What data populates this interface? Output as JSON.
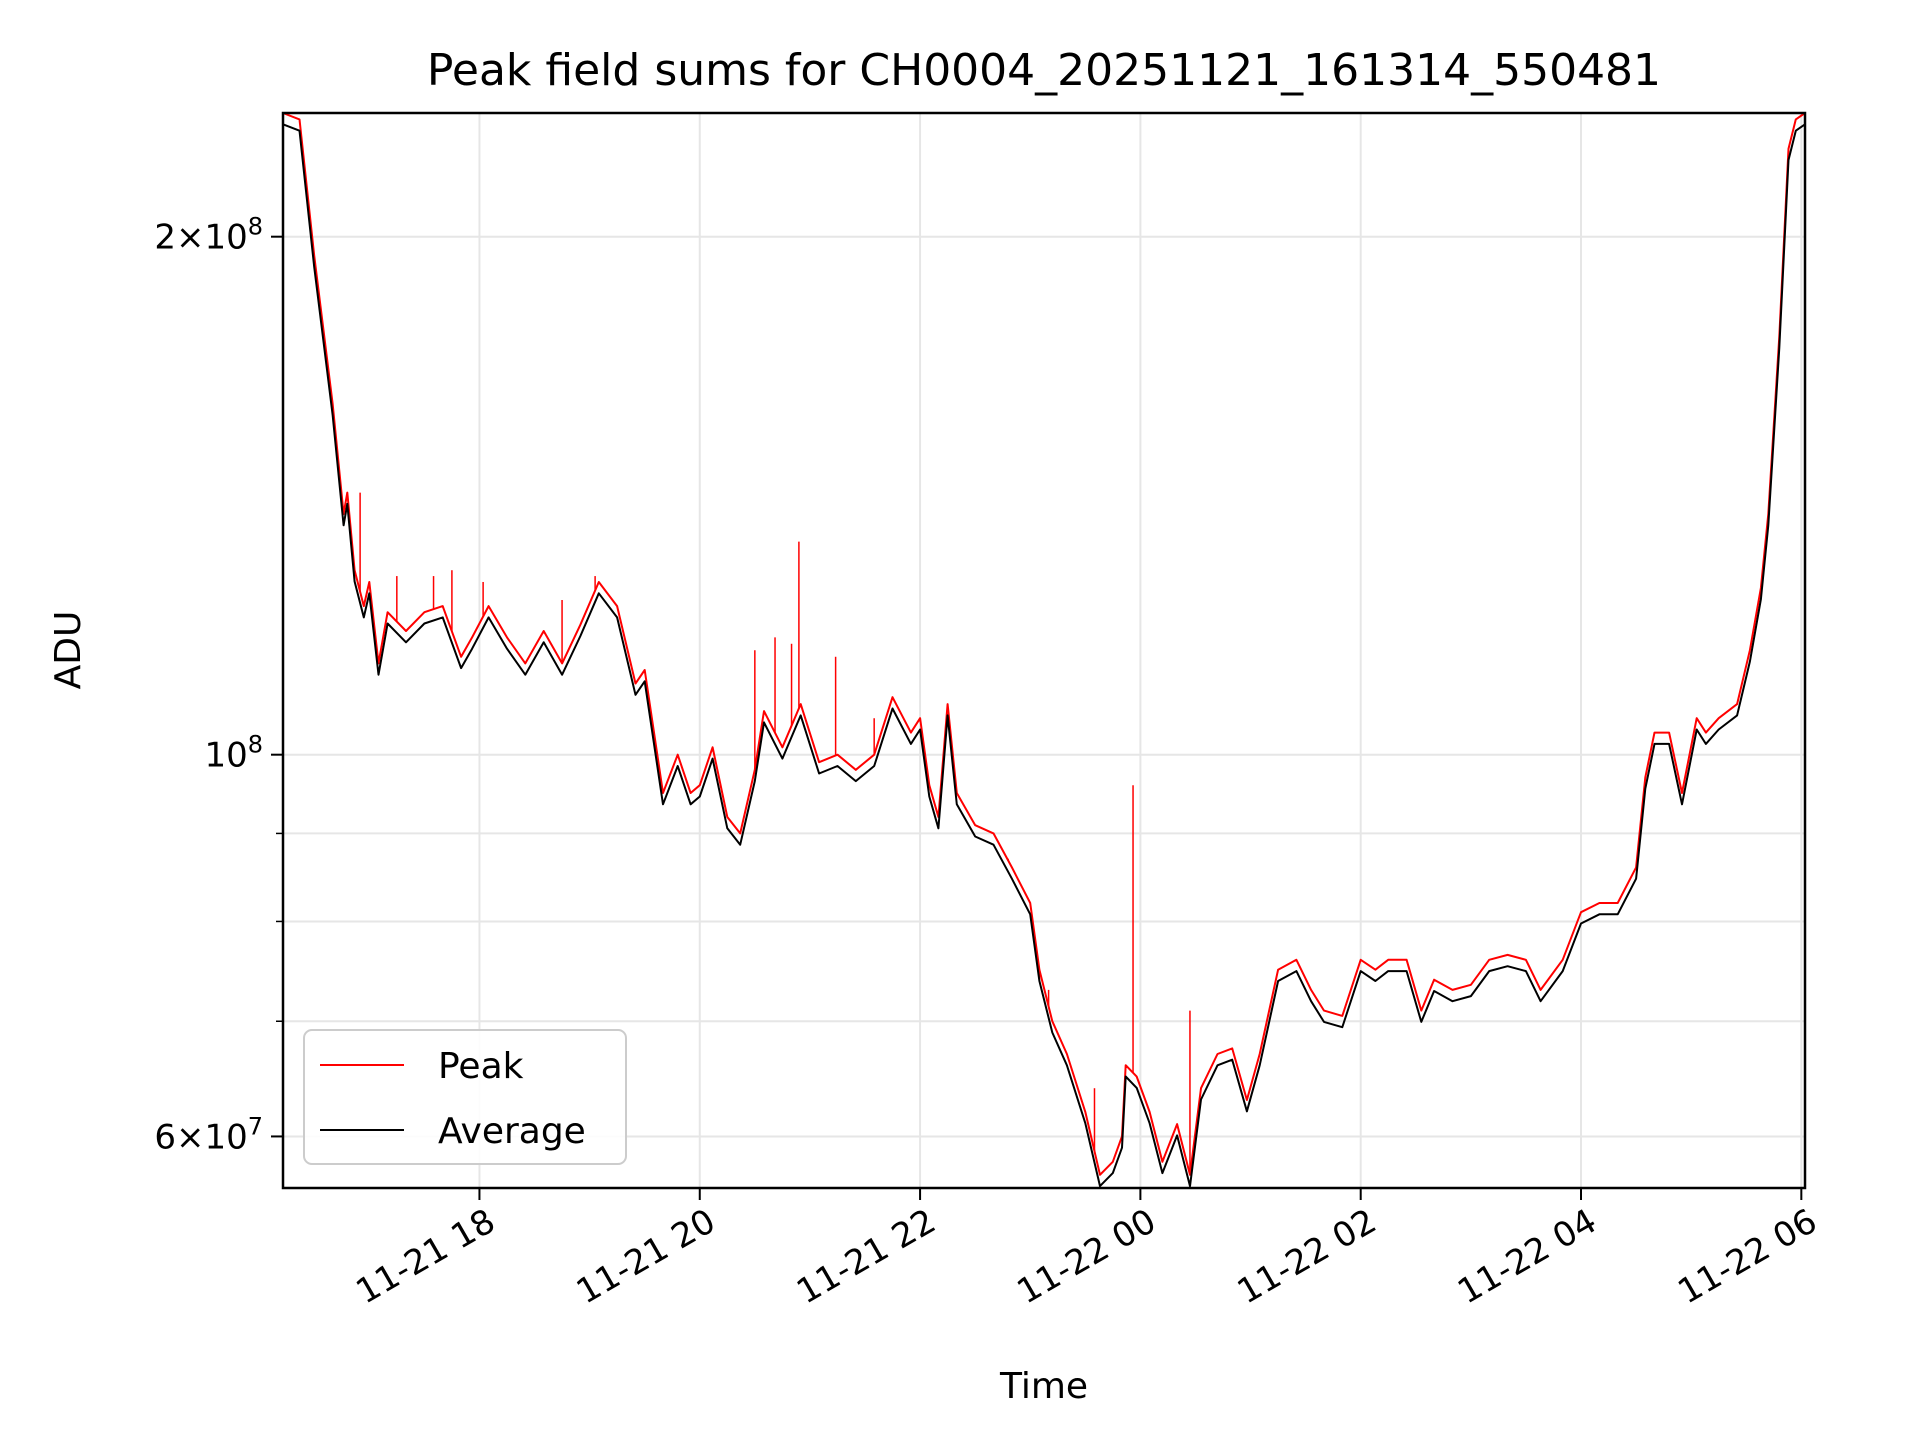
{
  "chart_data": {
    "type": "line",
    "title": "Peak field sums for CH0004_20251121_161314_550481",
    "xlabel": "Time",
    "ylabel": "ADU",
    "x_range": [
      "2025-11-21 16:13",
      "2025-11-22 06:02"
    ],
    "y_scale": "log",
    "ylim": [
      56000000,
      236000000
    ],
    "grid": true,
    "legend_position": "lower left",
    "x_ticks": [
      {
        "time": "2025-11-21 18:00",
        "label": "11-21 18"
      },
      {
        "time": "2025-11-21 20:00",
        "label": "11-21 20"
      },
      {
        "time": "2025-11-21 22:00",
        "label": "11-21 22"
      },
      {
        "time": "2025-11-22 00:00",
        "label": "11-22 00"
      },
      {
        "time": "2025-11-22 02:00",
        "label": "11-22 02"
      },
      {
        "time": "2025-11-22 04:00",
        "label": "11-22 04"
      },
      {
        "time": "2025-11-22 06:00",
        "label": "11-22 06"
      }
    ],
    "y_ticks_major": [
      {
        "value": 60000000,
        "mantissa": "6",
        "exponent": "7"
      },
      {
        "value": 100000000,
        "mantissa": "",
        "exponent": "8"
      },
      {
        "value": 200000000,
        "mantissa": "2",
        "exponent": "8"
      }
    ],
    "y_ticks_minor": [
      70000000,
      80000000,
      90000000
    ],
    "series": [
      {
        "name": "Peak",
        "color": "#ff0000",
        "points": [
          [
            "2025-11-21 16:13",
            236000000
          ],
          [
            "2025-11-21 16:22",
            234000000
          ],
          [
            "2025-11-21 16:30",
            195000000
          ],
          [
            "2025-11-21 16:40",
            160000000
          ],
          [
            "2025-11-21 16:46",
            138000000
          ],
          [
            "2025-11-21 16:48",
            142000000
          ],
          [
            "2025-11-21 16:52",
            128000000
          ],
          [
            "2025-11-21 16:57",
            122000000
          ],
          [
            "2025-11-21 17:00",
            126000000
          ],
          [
            "2025-11-21 17:05",
            113000000
          ],
          [
            "2025-11-21 17:10",
            121000000
          ],
          [
            "2025-11-21 17:20",
            118000000
          ],
          [
            "2025-11-21 17:30",
            121000000
          ],
          [
            "2025-11-21 17:40",
            122000000
          ],
          [
            "2025-11-21 17:50",
            114000000
          ],
          [
            "2025-11-21 17:56",
            117000000
          ],
          [
            "2025-11-21 18:05",
            122000000
          ],
          [
            "2025-11-21 18:15",
            117000000
          ],
          [
            "2025-11-21 18:25",
            113000000
          ],
          [
            "2025-11-21 18:35",
            118000000
          ],
          [
            "2025-11-21 18:45",
            113000000
          ],
          [
            "2025-11-21 18:55",
            119000000
          ],
          [
            "2025-11-21 19:05",
            126000000
          ],
          [
            "2025-11-21 19:15",
            122000000
          ],
          [
            "2025-11-21 19:25",
            110000000
          ],
          [
            "2025-11-21 19:30",
            112000000
          ],
          [
            "2025-11-21 19:40",
            95000000
          ],
          [
            "2025-11-21 19:48",
            100000000
          ],
          [
            "2025-11-21 19:55",
            95000000
          ],
          [
            "2025-11-21 20:00",
            96000000
          ],
          [
            "2025-11-21 20:07",
            101000000
          ],
          [
            "2025-11-21 20:15",
            92000000
          ],
          [
            "2025-11-21 20:22",
            90000000
          ],
          [
            "2025-11-21 20:30",
            98000000
          ],
          [
            "2025-11-21 20:35",
            106000000
          ],
          [
            "2025-11-21 20:45",
            101000000
          ],
          [
            "2025-11-21 20:55",
            107000000
          ],
          [
            "2025-11-21 21:05",
            99000000
          ],
          [
            "2025-11-21 21:15",
            100000000
          ],
          [
            "2025-11-21 21:25",
            98000000
          ],
          [
            "2025-11-21 21:35",
            100000000
          ],
          [
            "2025-11-21 21:45",
            108000000
          ],
          [
            "2025-11-21 21:55",
            103000000
          ],
          [
            "2025-11-21 22:00",
            105000000
          ],
          [
            "2025-11-21 22:05",
            96000000
          ],
          [
            "2025-11-21 22:10",
            92000000
          ],
          [
            "2025-11-21 22:15",
            107000000
          ],
          [
            "2025-11-21 22:20",
            95000000
          ],
          [
            "2025-11-21 22:30",
            91000000
          ],
          [
            "2025-11-21 22:40",
            90000000
          ],
          [
            "2025-11-21 22:50",
            86000000
          ],
          [
            "2025-11-21 23:00",
            82000000
          ],
          [
            "2025-11-21 23:05",
            75000000
          ],
          [
            "2025-11-21 23:12",
            70000000
          ],
          [
            "2025-11-21 23:20",
            67000000
          ],
          [
            "2025-11-21 23:30",
            62000000
          ],
          [
            "2025-11-21 23:38",
            57000000
          ],
          [
            "2025-11-21 23:45",
            58000000
          ],
          [
            "2025-11-21 23:50",
            60000000
          ],
          [
            "2025-11-21 23:52",
            66000000
          ],
          [
            "2025-11-21 23:58",
            65000000
          ],
          [
            "2025-11-22 00:05",
            62000000
          ],
          [
            "2025-11-22 00:12",
            58000000
          ],
          [
            "2025-11-22 00:20",
            61000000
          ],
          [
            "2025-11-22 00:27",
            57000000
          ],
          [
            "2025-11-22 00:33",
            64000000
          ],
          [
            "2025-11-22 00:42",
            67000000
          ],
          [
            "2025-11-22 00:50",
            67500000
          ],
          [
            "2025-11-22 00:58",
            63000000
          ],
          [
            "2025-11-22 01:05",
            67000000
          ],
          [
            "2025-11-22 01:15",
            75000000
          ],
          [
            "2025-11-22 01:25",
            76000000
          ],
          [
            "2025-11-22 01:33",
            73000000
          ],
          [
            "2025-11-22 01:40",
            71000000
          ],
          [
            "2025-11-22 01:50",
            70500000
          ],
          [
            "2025-11-22 02:00",
            76000000
          ],
          [
            "2025-11-22 02:08",
            75000000
          ],
          [
            "2025-11-22 02:15",
            76000000
          ],
          [
            "2025-11-22 02:25",
            76000000
          ],
          [
            "2025-11-22 02:33",
            71000000
          ],
          [
            "2025-11-22 02:40",
            74000000
          ],
          [
            "2025-11-22 02:50",
            73000000
          ],
          [
            "2025-11-22 03:00",
            73500000
          ],
          [
            "2025-11-22 03:10",
            76000000
          ],
          [
            "2025-11-22 03:20",
            76500000
          ],
          [
            "2025-11-22 03:30",
            76000000
          ],
          [
            "2025-11-22 03:38",
            73000000
          ],
          [
            "2025-11-22 03:50",
            76000000
          ],
          [
            "2025-11-22 04:00",
            81000000
          ],
          [
            "2025-11-22 04:10",
            82000000
          ],
          [
            "2025-11-22 04:20",
            82000000
          ],
          [
            "2025-11-22 04:30",
            86000000
          ],
          [
            "2025-11-22 04:35",
            97000000
          ],
          [
            "2025-11-22 04:40",
            103000000
          ],
          [
            "2025-11-22 04:48",
            103000000
          ],
          [
            "2025-11-22 04:55",
            95000000
          ],
          [
            "2025-11-22 05:03",
            105000000
          ],
          [
            "2025-11-22 05:08",
            103000000
          ],
          [
            "2025-11-22 05:15",
            105000000
          ],
          [
            "2025-11-22 05:25",
            107000000
          ],
          [
            "2025-11-22 05:32",
            115000000
          ],
          [
            "2025-11-22 05:38",
            125000000
          ],
          [
            "2025-11-22 05:42",
            138000000
          ],
          [
            "2025-11-22 05:48",
            175000000
          ],
          [
            "2025-11-22 05:53",
            225000000
          ],
          [
            "2025-11-22 05:57",
            234000000
          ],
          [
            "2025-11-22 06:02",
            236000000
          ]
        ],
        "spikes": [
          [
            "2025-11-21 16:55",
            142000000
          ],
          [
            "2025-11-21 17:15",
            127000000
          ],
          [
            "2025-11-21 17:35",
            127000000
          ],
          [
            "2025-11-21 17:45",
            128000000
          ],
          [
            "2025-11-21 18:02",
            126000000
          ],
          [
            "2025-11-21 18:45",
            123000000
          ],
          [
            "2025-11-21 19:03",
            127000000
          ],
          [
            "2025-11-21 20:30",
            115000000
          ],
          [
            "2025-11-21 20:41",
            117000000
          ],
          [
            "2025-11-21 20:50",
            116000000
          ],
          [
            "2025-11-21 20:54",
            133000000
          ],
          [
            "2025-11-21 21:14",
            114000000
          ],
          [
            "2025-11-21 21:35",
            105000000
          ],
          [
            "2025-11-21 22:48",
            87000000
          ],
          [
            "2025-11-21 23:05",
            74000000
          ],
          [
            "2025-11-21 23:10",
            73000000
          ],
          [
            "2025-11-21 23:35",
            64000000
          ],
          [
            "2025-11-21 23:56",
            96000000
          ],
          [
            "2025-11-22 00:27",
            71000000
          ]
        ]
      },
      {
        "name": "Average",
        "color": "#000000",
        "offset_ratio": 0.985
      }
    ]
  }
}
